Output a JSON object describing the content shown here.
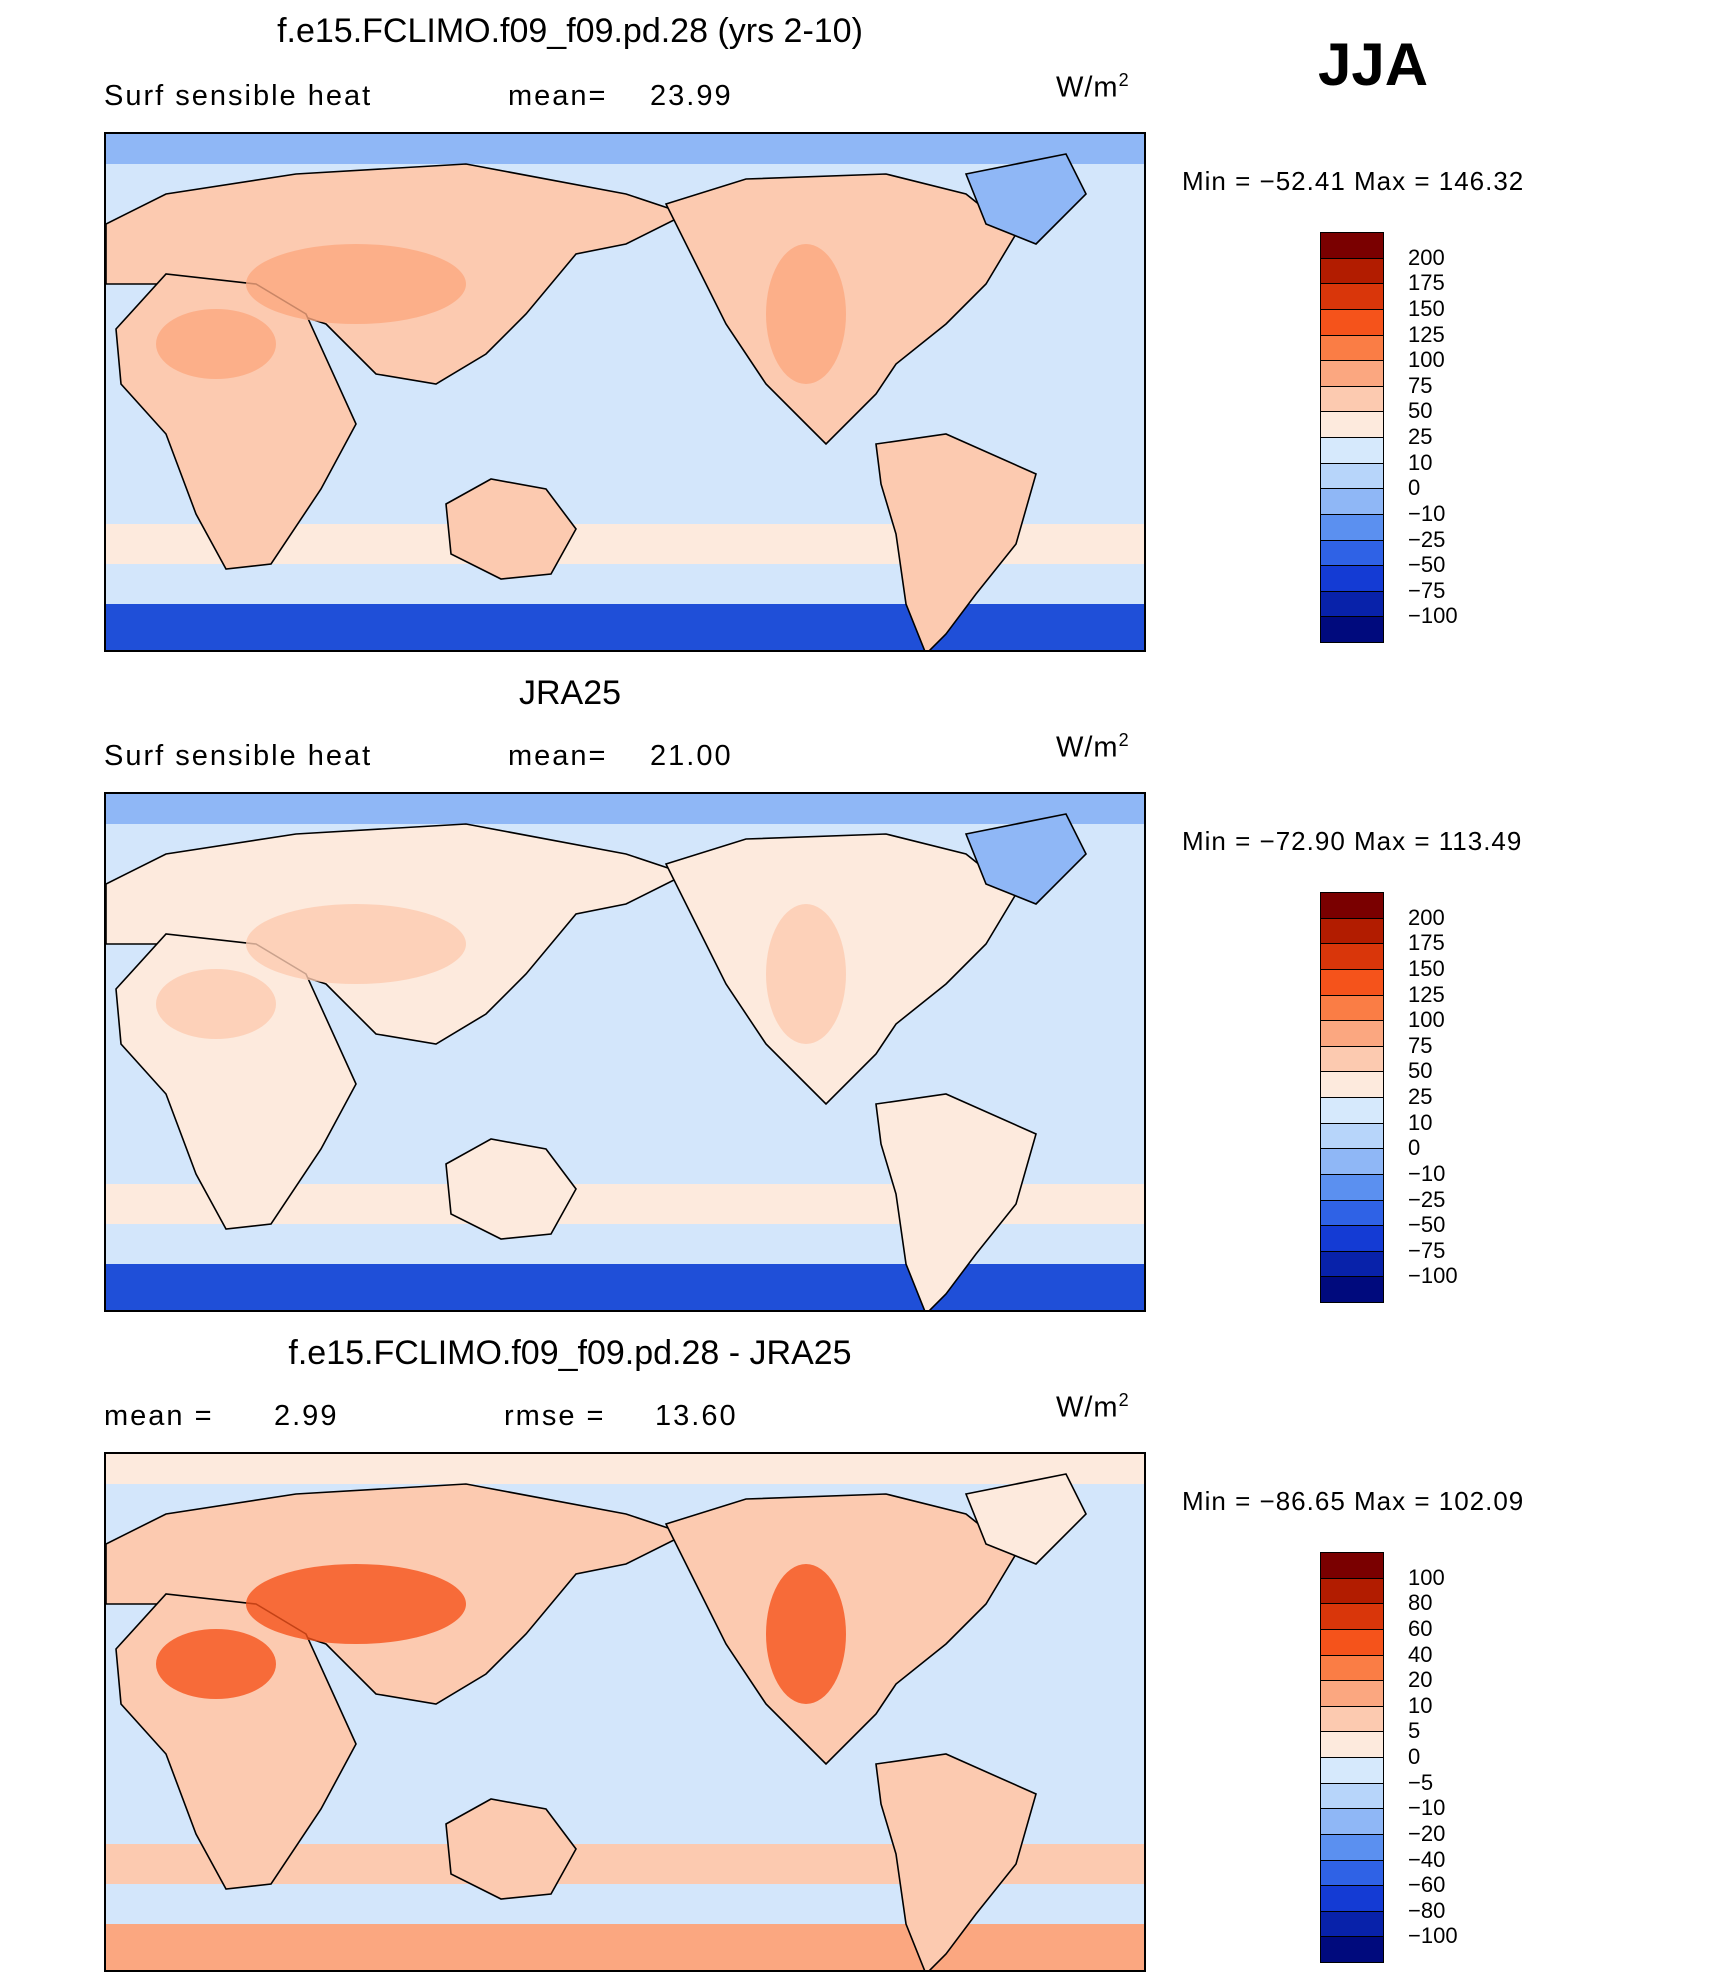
{
  "season": "JJA",
  "units_base": "W/m",
  "units_exp": "2",
  "panels": [
    {
      "title": "f.e15.FCLIMO.f09_f09.pd.28 (yrs 2-10)",
      "left_label": "Surf  sensible  heat",
      "stat_label": "mean=",
      "stat_value": "23.99",
      "minmax": "Min  =  −52.41  Max  =  146.32",
      "colorbar": [
        "200",
        "175",
        "150",
        "125",
        "100",
        "75",
        "50",
        "25",
        "10",
        "0",
        "−10",
        "−25",
        "−50",
        "−75",
        "−100"
      ]
    },
    {
      "title": "JRA25",
      "left_label": "Surf  sensible  heat",
      "stat_label": "mean=",
      "stat_value": "21.00",
      "minmax": "Min  =  −72.90  Max  =  113.49",
      "colorbar": [
        "200",
        "175",
        "150",
        "125",
        "100",
        "75",
        "50",
        "25",
        "10",
        "0",
        "−10",
        "−25",
        "−50",
        "−75",
        "−100"
      ]
    },
    {
      "title": "f.e15.FCLIMO.f09_f09.pd.28 - JRA25",
      "left_label": "mean  =",
      "left_value": "2.99",
      "stat_label": "rmse  =",
      "stat_value": "13.60",
      "minmax": "Min  =  −86.65  Max  =  102.09",
      "colorbar": [
        "100",
        "80",
        "60",
        "40",
        "20",
        "10",
        "5",
        "0",
        "−5",
        "−10",
        "−20",
        "−40",
        "−60",
        "−80",
        "−100"
      ]
    }
  ],
  "colors": {
    "bins": [
      "#7a0000",
      "#b21c00",
      "#d9360a",
      "#f5531b",
      "#fa7d45",
      "#fba780",
      "#fccab0",
      "#fdeadd",
      "#d6e9fc",
      "#b7d5fa",
      "#8fb7f6",
      "#5b90f0",
      "#2f62e6",
      "#143bd4",
      "#0822aa",
      "#000a7d"
    ],
    "ocean": "#d3e6fb",
    "land_warm": "#fccab0",
    "southern_ocean": "#1f4fd8",
    "arctic": "#8fb7f6",
    "coastline": "#000000"
  }
}
